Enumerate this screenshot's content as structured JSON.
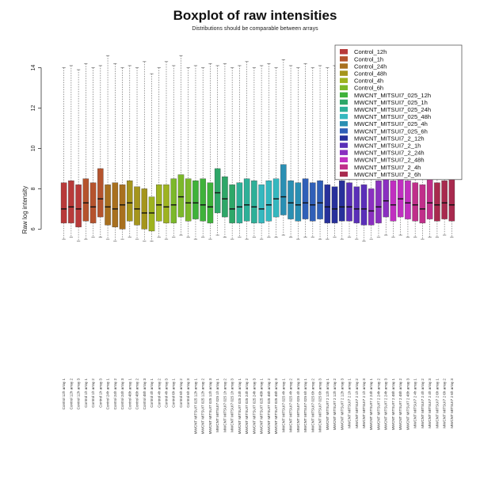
{
  "chart_data": {
    "type": "boxplot",
    "title": "Boxplot of raw intensities",
    "subtitle": "Distributions should be comparable between arrays",
    "ylabel": "Raw log intensity",
    "xlabel": "",
    "ylim": [
      -0.5,
      15
    ],
    "yticks": [
      6,
      8,
      10,
      12,
      14
    ],
    "grid": false,
    "legend_position": "top-right",
    "legend": [
      {
        "name": "Control_12h",
        "color": "#b83a3a"
      },
      {
        "name": "Control_1h",
        "color": "#b5532d"
      },
      {
        "name": "Control_24h",
        "color": "#a8701f"
      },
      {
        "name": "Control_48h",
        "color": "#a5951c"
      },
      {
        "name": "Control_4h",
        "color": "#9eb31f"
      },
      {
        "name": "Control_6h",
        "color": "#7cb82a"
      },
      {
        "name": "MWCNT_MITSUI7_025_12h",
        "color": "#3fb23a"
      },
      {
        "name": "MWCNT_MITSUI7_025_1h",
        "color": "#2ea768"
      },
      {
        "name": "MWCNT_MITSUI7_025_24h",
        "color": "#2eb098"
      },
      {
        "name": "MWCNT_MITSUI7_025_48h",
        "color": "#34b8bf"
      },
      {
        "name": "MWCNT_MITSUI7_025_4h",
        "color": "#2a8fb3"
      },
      {
        "name": "MWCNT_MITSUI7_025_6h",
        "color": "#2f5fb8"
      },
      {
        "name": "MWCNT_MITSUI7_2_12h",
        "color": "#27309b"
      },
      {
        "name": "MWCNT_MITSUI7_2_1h",
        "color": "#5a2fb8"
      },
      {
        "name": "MWCNT_MITSUI7_2_24h",
        "color": "#8a2fc0"
      },
      {
        "name": "MWCNT_MITSUI7_2_48h",
        "color": "#c02fc0"
      },
      {
        "name": "MWCNT_MITSUI7_2_4h",
        "color": "#c02f8a"
      },
      {
        "name": "MWCNT_MITSUI7_2_6h",
        "color": "#a82a4e"
      }
    ],
    "series": [
      {
        "name": "Control 12h array 1",
        "group": 0,
        "min": 5.5,
        "q1": 6.3,
        "median": 7.0,
        "q3": 8.3,
        "max": 14.0
      },
      {
        "name": "Control 12h array 2",
        "group": 0,
        "min": 5.6,
        "q1": 6.3,
        "median": 7.1,
        "q3": 8.4,
        "max": 14.1
      },
      {
        "name": "Control 12h array 3",
        "group": 0,
        "min": 5.4,
        "q1": 6.1,
        "median": 7.0,
        "q3": 8.2,
        "max": 13.9
      },
      {
        "name": "Control 1h array 1",
        "group": 1,
        "min": 5.5,
        "q1": 6.4,
        "median": 7.3,
        "q3": 8.5,
        "max": 14.2
      },
      {
        "name": "Control 1h array 2",
        "group": 1,
        "min": 5.6,
        "q1": 6.3,
        "median": 7.1,
        "q3": 8.3,
        "max": 14.0
      },
      {
        "name": "Control 1h array 3",
        "group": 1,
        "min": 5.6,
        "q1": 6.6,
        "median": 7.5,
        "q3": 9.0,
        "max": 14.1
      },
      {
        "name": "Control 24h array 1",
        "group": 2,
        "min": 5.5,
        "q1": 6.2,
        "median": 7.1,
        "q3": 8.2,
        "max": 14.6
      },
      {
        "name": "Control 24h array 2",
        "group": 2,
        "min": 5.4,
        "q1": 6.1,
        "median": 7.0,
        "q3": 8.3,
        "max": 14.2
      },
      {
        "name": "Control 24h array 3",
        "group": 2,
        "min": 5.5,
        "q1": 6.0,
        "median": 7.2,
        "q3": 8.2,
        "max": 14.0
      },
      {
        "name": "Control 48h array 1",
        "group": 3,
        "min": 5.6,
        "q1": 6.4,
        "median": 7.3,
        "q3": 8.4,
        "max": 14.1
      },
      {
        "name": "Control 48h array 2",
        "group": 3,
        "min": 5.5,
        "q1": 6.2,
        "median": 7.0,
        "q3": 8.1,
        "max": 14.0
      },
      {
        "name": "Control 48h array 3",
        "group": 3,
        "min": 5.4,
        "q1": 6.0,
        "median": 6.8,
        "q3": 8.0,
        "max": 14.3
      },
      {
        "name": "Control 4h array 1",
        "group": 4,
        "min": 5.4,
        "q1": 5.9,
        "median": 6.8,
        "q3": 7.6,
        "max": 13.7
      },
      {
        "name": "Control 4h array 2",
        "group": 4,
        "min": 5.6,
        "q1": 6.4,
        "median": 7.2,
        "q3": 8.2,
        "max": 14.0
      },
      {
        "name": "Control 4h array 3",
        "group": 4,
        "min": 5.5,
        "q1": 6.3,
        "median": 7.1,
        "q3": 8.2,
        "max": 14.3
      },
      {
        "name": "Control 6h array 1",
        "group": 5,
        "min": 5.6,
        "q1": 6.3,
        "median": 7.2,
        "q3": 8.5,
        "max": 14.1
      },
      {
        "name": "Control 6h array 2",
        "group": 5,
        "min": 5.7,
        "q1": 6.6,
        "median": 7.6,
        "q3": 8.7,
        "max": 14.6
      },
      {
        "name": "Control 6h array 3",
        "group": 5,
        "min": 5.6,
        "q1": 6.4,
        "median": 7.3,
        "q3": 8.5,
        "max": 14.0
      },
      {
        "name": "MWCNT MITSUI7 025 12h array 1",
        "group": 6,
        "min": 5.5,
        "q1": 6.5,
        "median": 7.3,
        "q3": 8.4,
        "max": 14.1
      },
      {
        "name": "MWCNT MITSUI7 025 12h array 2",
        "group": 6,
        "min": 5.6,
        "q1": 6.4,
        "median": 7.2,
        "q3": 8.5,
        "max": 14.0
      },
      {
        "name": "MWCNT MITSUI7 025 12h array 3",
        "group": 6,
        "min": 5.5,
        "q1": 6.3,
        "median": 7.1,
        "q3": 8.3,
        "max": 14.2
      },
      {
        "name": "MWCNT MITSUI7 025 1h array 1",
        "group": 7,
        "min": 5.7,
        "q1": 6.8,
        "median": 7.8,
        "q3": 9.0,
        "max": 14.1
      },
      {
        "name": "MWCNT MITSUI7 025 1h array 2",
        "group": 7,
        "min": 5.6,
        "q1": 6.6,
        "median": 7.5,
        "q3": 8.6,
        "max": 14.2
      },
      {
        "name": "MWCNT MITSUI7 025 1h array 3",
        "group": 7,
        "min": 5.5,
        "q1": 6.3,
        "median": 7.0,
        "q3": 8.2,
        "max": 14.0
      },
      {
        "name": "MWCNT MITSUI7 025 24h array 1",
        "group": 8,
        "min": 5.6,
        "q1": 6.3,
        "median": 7.1,
        "q3": 8.3,
        "max": 14.1
      },
      {
        "name": "MWCNT MITSUI7 025 24h array 2",
        "group": 8,
        "min": 5.5,
        "q1": 6.4,
        "median": 7.2,
        "q3": 8.5,
        "max": 14.3
      },
      {
        "name": "MWCNT MITSUI7 025 24h array 3",
        "group": 8,
        "min": 5.6,
        "q1": 6.3,
        "median": 7.1,
        "q3": 8.4,
        "max": 14.0
      },
      {
        "name": "MWCNT MITSUI7 025 48h array 1",
        "group": 9,
        "min": 5.5,
        "q1": 6.3,
        "median": 7.0,
        "q3": 8.2,
        "max": 14.1
      },
      {
        "name": "MWCNT MITSUI7 025 48h array 2",
        "group": 9,
        "min": 5.6,
        "q1": 6.4,
        "median": 7.2,
        "q3": 8.4,
        "max": 14.2
      },
      {
        "name": "MWCNT MITSUI7 025 48h array 3",
        "group": 9,
        "min": 5.6,
        "q1": 6.6,
        "median": 7.5,
        "q3": 8.5,
        "max": 14.0
      },
      {
        "name": "MWCNT MITSUI7 025 4h array 1",
        "group": 10,
        "min": 5.7,
        "q1": 6.7,
        "median": 7.6,
        "q3": 9.2,
        "max": 14.4
      },
      {
        "name": "MWCNT MITSUI7 025 4h array 2",
        "group": 10,
        "min": 5.6,
        "q1": 6.5,
        "median": 7.3,
        "q3": 8.4,
        "max": 14.1
      },
      {
        "name": "MWCNT MITSUI7 025 4h array 3",
        "group": 10,
        "min": 5.5,
        "q1": 6.4,
        "median": 7.2,
        "q3": 8.3,
        "max": 14.0
      },
      {
        "name": "MWCNT MITSUI7 025 6h array 1",
        "group": 11,
        "min": 5.6,
        "q1": 6.5,
        "median": 7.3,
        "q3": 8.5,
        "max": 14.2
      },
      {
        "name": "MWCNT MITSUI7 025 6h array 2",
        "group": 11,
        "min": 5.6,
        "q1": 6.4,
        "median": 7.2,
        "q3": 8.3,
        "max": 14.0
      },
      {
        "name": "MWCNT MITSUI7 025 6h array 3",
        "group": 11,
        "min": 5.5,
        "q1": 6.5,
        "median": 7.3,
        "q3": 8.4,
        "max": 14.1
      },
      {
        "name": "MWCNT MITSUI7 2 12h array 1",
        "group": 12,
        "min": 5.5,
        "q1": 6.3,
        "median": 7.1,
        "q3": 8.2,
        "max": 14.0
      },
      {
        "name": "MWCNT MITSUI7 2 12h array 2",
        "group": 12,
        "min": 5.6,
        "q1": 6.3,
        "median": 7.0,
        "q3": 8.1,
        "max": 14.1
      },
      {
        "name": "MWCNT MITSUI7 2 12h array 3",
        "group": 12,
        "min": 5.5,
        "q1": 6.4,
        "median": 7.1,
        "q3": 8.4,
        "max": 14.2
      },
      {
        "name": "MWCNT MITSUI7 2 1h array 1",
        "group": 13,
        "min": 5.6,
        "q1": 6.4,
        "median": 7.1,
        "q3": 8.3,
        "max": 14.0
      },
      {
        "name": "MWCNT MITSUI7 2 1h array 2",
        "group": 13,
        "min": 5.5,
        "q1": 6.3,
        "median": 7.0,
        "q3": 8.1,
        "max": 14.1
      },
      {
        "name": "MWCNT MITSUI7 2 1h array 3",
        "group": 13,
        "min": 5.4,
        "q1": 6.2,
        "median": 7.0,
        "q3": 8.2,
        "max": 14.0
      },
      {
        "name": "MWCNT MITSUI7 2 24h array 1",
        "group": 14,
        "min": 5.5,
        "q1": 6.2,
        "median": 6.9,
        "q3": 8.0,
        "max": 14.1
      },
      {
        "name": "MWCNT MITSUI7 2 24h array 2",
        "group": 14,
        "min": 5.6,
        "q1": 6.3,
        "median": 7.1,
        "q3": 8.4,
        "max": 14.2
      },
      {
        "name": "MWCNT MITSUI7 2 24h array 3",
        "group": 14,
        "min": 5.7,
        "q1": 6.6,
        "median": 7.4,
        "q3": 8.7,
        "max": 14.0
      },
      {
        "name": "MWCNT MITSUI7 2 48h array 1",
        "group": 15,
        "min": 5.6,
        "q1": 6.4,
        "median": 7.2,
        "q3": 8.4,
        "max": 14.1
      },
      {
        "name": "MWCNT MITSUI7 2 48h array 2",
        "group": 15,
        "min": 5.7,
        "q1": 6.6,
        "median": 7.5,
        "q3": 9.0,
        "max": 14.3
      },
      {
        "name": "MWCNT MITSUI7 2 48h array 3",
        "group": 15,
        "min": 5.6,
        "q1": 6.5,
        "median": 7.3,
        "q3": 8.4,
        "max": 14.0
      },
      {
        "name": "MWCNT MITSUI7 2 4h array 1",
        "group": 16,
        "min": 5.6,
        "q1": 6.4,
        "median": 7.2,
        "q3": 8.3,
        "max": 14.1
      },
      {
        "name": "MWCNT MITSUI7 2 4h array 2",
        "group": 16,
        "min": 5.5,
        "q1": 6.3,
        "median": 7.0,
        "q3": 8.2,
        "max": 14.0
      },
      {
        "name": "MWCNT MITSUI7 2 4h array 3",
        "group": 16,
        "min": 5.6,
        "q1": 6.5,
        "median": 7.3,
        "q3": 8.5,
        "max": 14.2
      },
      {
        "name": "MWCNT MITSUI7 2 6h array 1",
        "group": 17,
        "min": 5.6,
        "q1": 6.4,
        "median": 7.2,
        "q3": 8.3,
        "max": 14.1
      },
      {
        "name": "MWCNT MITSUI7 2 6h array 2",
        "group": 17,
        "min": 5.7,
        "q1": 6.5,
        "median": 7.3,
        "q3": 8.4,
        "max": 14.0
      },
      {
        "name": "MWCNT MITSUI7 2 6h array 3",
        "group": 17,
        "min": 5.6,
        "q1": 6.4,
        "median": 7.2,
        "q3": 8.6,
        "max": 14.2
      }
    ]
  }
}
